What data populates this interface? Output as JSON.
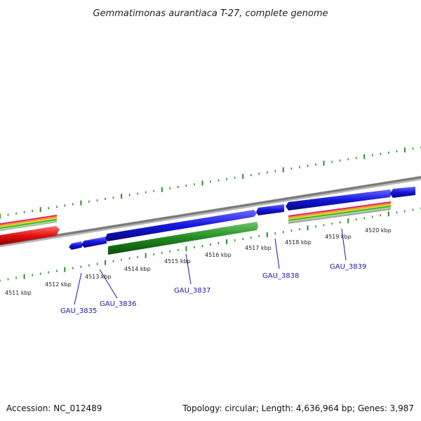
{
  "title": "Gemmatimonas aurantiaca T-27, complete genome",
  "footer": {
    "accession": "Accession: NC_012489",
    "topology": "Topology: circular; Length: 4,636,964 bp; Genes: 3,987"
  },
  "kbp_labels": [
    "4511 kbp",
    "4512 kbp",
    "4513 kbp",
    "4514 kbp",
    "4515 kbp",
    "4516 kbp",
    "4517 kbp",
    "4518 kbp",
    "4519 kbp",
    "4520 kbp"
  ],
  "genes": [
    {
      "id": "GAU_3835"
    },
    {
      "id": "GAU_3836"
    },
    {
      "id": "GAU_3837"
    },
    {
      "id": "GAU_3838"
    },
    {
      "id": "GAU_3839"
    }
  ],
  "colors": {
    "backbone": "#8a8a8a",
    "gene_blue": "#1010d8",
    "gene_green": "#1f8a1f",
    "gene_red": "#e01010",
    "tick": "#2f8a2f",
    "gene_label": "#1a1aa8",
    "band_pink": "#e0207a",
    "band_orange": "#f09020",
    "band_yellow": "#d8d820",
    "band_green": "#40b040",
    "band_lightgreen": "#a8d890",
    "band_gray": "#a0a0a0"
  }
}
